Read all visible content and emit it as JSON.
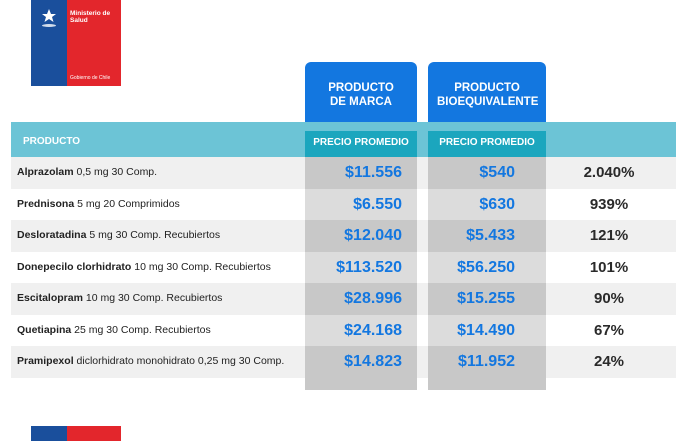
{
  "logo": {
    "ministry": "Ministerio de Salud",
    "government": "Gobierno de Chile",
    "colors": {
      "blue": "#1a4f9c",
      "red": "#e3262c"
    },
    "icon": "chile-coat-of-arms-icon"
  },
  "columns": {
    "brand_title": "PRODUCTO DE MARCA",
    "bioequivalent_title": "PRODUCTO BIOEQUIVALENTE",
    "product_header": "PRODUCTO",
    "brand_price_header": "PRECIO PROMEDIO",
    "bioequivalent_price_header": "PRECIO PROMEDIO"
  },
  "rows": [
    {
      "drug": "Alprazolam",
      "detail": " 0,5 mg 30 Comp.",
      "brand_price": "$11.556",
      "bio_price": "$540",
      "difference": "2.040%"
    },
    {
      "drug": "Prednisona",
      "detail": " 5 mg 20 Comprimidos",
      "brand_price": "$6.550",
      "bio_price": "$630",
      "difference": "939%"
    },
    {
      "drug": "Desloratadina",
      "detail": " 5 mg 30 Comp. Recubiertos",
      "brand_price": "$12.040",
      "bio_price": "$5.433",
      "difference": "121%"
    },
    {
      "drug": "Donepecilo clorhidrato",
      "detail": " 10 mg 30 Comp. Recubiertos",
      "brand_price": "$113.520",
      "bio_price": "$56.250",
      "difference": "101%"
    },
    {
      "drug": "Escitalopram",
      "detail": " 10 mg 30 Comp. Recubiertos",
      "brand_price": "$28.996",
      "bio_price": "$15.255",
      "difference": "90%"
    },
    {
      "drug": "Quetiapina",
      "detail": " 25 mg 30 Comp. Recubiertos",
      "brand_price": "$24.168",
      "bio_price": "$14.490",
      "difference": "67%"
    },
    {
      "drug": "Pramipexol",
      "detail": " diclorhidrato monohidrato 0,25 mg 30 Comp.",
      "brand_price": "$14.823",
      "bio_price": "$11.952",
      "difference": "24%"
    }
  ],
  "theme": {
    "accent": "#1377e0",
    "header_band": "#6cc4d6",
    "header_cell": "#1ba6be"
  }
}
